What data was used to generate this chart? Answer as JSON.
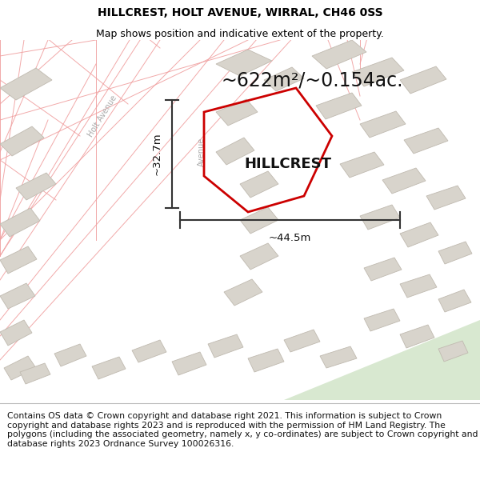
{
  "title": "HILLCREST, HOLT AVENUE, WIRRAL, CH46 0SS",
  "subtitle": "Map shows position and indicative extent of the property.",
  "footer": "Contains OS data © Crown copyright and database right 2021. This information is subject to Crown copyright and database rights 2023 and is reproduced with the permission of HM Land Registry. The polygons (including the associated geometry, namely x, y co-ordinates) are subject to Crown copyright and database rights 2023 Ordnance Survey 100026316.",
  "area_text": "~622m²/~0.154ac.",
  "property_label": "HILLCREST",
  "dim_width": "~44.5m",
  "dim_height": "~32.7m",
  "map_bg": "#f5f3f0",
  "plot_outline": "#cc0000",
  "building_fill": "#d8d4cc",
  "building_outline": "#c0bab0",
  "road_line_color": "#f0a0a0",
  "road_band_color": "#ffffff",
  "green_fill": "#d8e8d0",
  "title_fontsize": 10,
  "subtitle_fontsize": 9,
  "footer_fontsize": 7.8,
  "dim_line_color": "#333333",
  "label_color": "#111111"
}
